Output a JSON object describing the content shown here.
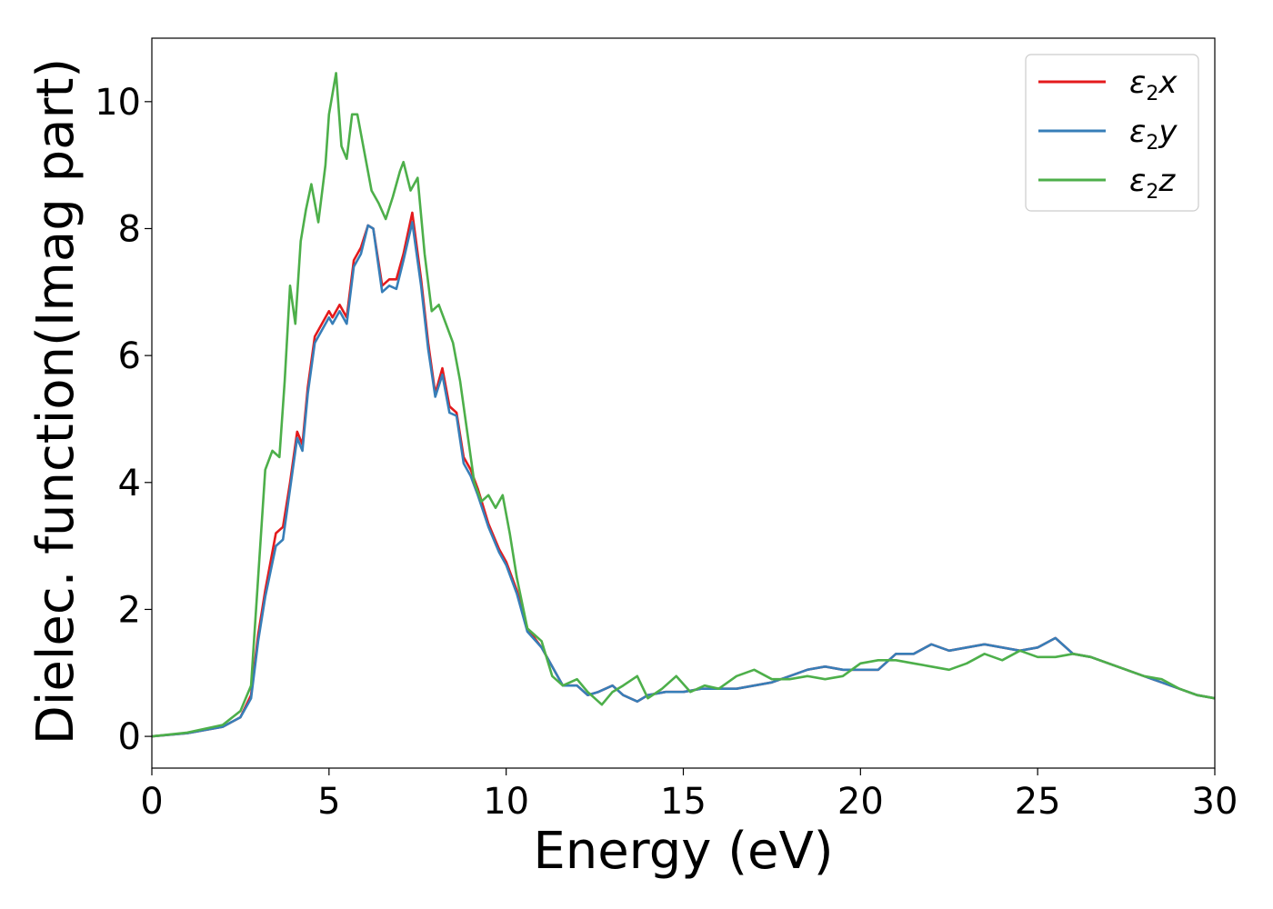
{
  "chart_data": {
    "type": "line",
    "title": "",
    "xlabel": "Energy (eV)",
    "ylabel": "Dielec. function(Imag part)",
    "xlim": [
      0,
      30
    ],
    "ylim": [
      -0.5,
      11
    ],
    "xticks": [
      "0",
      "5",
      "10",
      "15",
      "20",
      "25",
      "30"
    ],
    "yticks": [
      "0",
      "2",
      "4",
      "6",
      "8",
      "10"
    ],
    "grid": false,
    "legend_position": "top-right",
    "series": [
      {
        "name": "ε2x",
        "legend_base": "ε",
        "legend_sub": "2",
        "legend_var": "x",
        "color": "#e41a1c",
        "x": [
          0,
          1,
          2,
          2.5,
          2.8,
          3.0,
          3.2,
          3.5,
          3.7,
          3.9,
          4.1,
          4.25,
          4.4,
          4.6,
          4.8,
          5.0,
          5.1,
          5.3,
          5.5,
          5.7,
          5.9,
          6.1,
          6.25,
          6.5,
          6.7,
          6.9,
          7.1,
          7.35,
          7.6,
          7.8,
          8.0,
          8.2,
          8.4,
          8.6,
          8.8,
          9.0,
          9.2,
          9.5,
          9.8,
          10.0,
          10.3,
          10.6,
          11.0,
          11.3,
          11.6,
          12.0,
          12.3,
          12.6,
          13.0,
          13.3,
          13.7,
          14.0,
          14.5,
          15.0,
          15.5,
          16.0,
          16.5,
          17.0,
          17.5,
          18.0,
          18.5,
          19.0,
          19.5,
          20.0,
          20.5,
          21.0,
          21.5,
          22.0,
          22.5,
          23.0,
          23.5,
          24.0,
          24.5,
          25.0,
          25.5,
          26.0,
          26.5,
          27.0,
          27.5,
          28.0,
          28.5,
          29.0,
          29.5,
          30.0
        ],
        "y": [
          0,
          0.05,
          0.15,
          0.3,
          0.65,
          1.6,
          2.3,
          3.2,
          3.3,
          4.0,
          4.8,
          4.6,
          5.5,
          6.3,
          6.5,
          6.7,
          6.6,
          6.8,
          6.6,
          7.5,
          7.7,
          8.05,
          8.0,
          7.1,
          7.2,
          7.2,
          7.6,
          8.25,
          7.2,
          6.2,
          5.4,
          5.8,
          5.2,
          5.1,
          4.4,
          4.2,
          3.9,
          3.35,
          2.95,
          2.75,
          2.3,
          1.7,
          1.4,
          1.1,
          0.8,
          0.8,
          0.65,
          0.7,
          0.8,
          0.65,
          0.55,
          0.65,
          0.7,
          0.7,
          0.75,
          0.75,
          0.75,
          0.8,
          0.85,
          0.95,
          1.05,
          1.1,
          1.05,
          1.05,
          1.05,
          1.3,
          1.3,
          1.45,
          1.35,
          1.4,
          1.45,
          1.4,
          1.35,
          1.4,
          1.55,
          1.3,
          1.25,
          1.15,
          1.05,
          0.95,
          0.85,
          0.75,
          0.65,
          0.6
        ]
      },
      {
        "name": "ε2y",
        "legend_base": "ε",
        "legend_sub": "2",
        "legend_var": "y",
        "color": "#377eb8",
        "x": [
          0,
          1,
          2,
          2.5,
          2.8,
          3.0,
          3.2,
          3.5,
          3.7,
          3.9,
          4.1,
          4.25,
          4.4,
          4.6,
          4.8,
          5.0,
          5.1,
          5.3,
          5.5,
          5.7,
          5.9,
          6.1,
          6.25,
          6.5,
          6.7,
          6.9,
          7.1,
          7.35,
          7.6,
          7.8,
          8.0,
          8.2,
          8.4,
          8.6,
          8.8,
          9.0,
          9.2,
          9.5,
          9.8,
          10.0,
          10.3,
          10.6,
          11.0,
          11.3,
          11.6,
          12.0,
          12.3,
          12.6,
          13.0,
          13.3,
          13.7,
          14.0,
          14.5,
          15.0,
          15.5,
          16.0,
          16.5,
          17.0,
          17.5,
          18.0,
          18.5,
          19.0,
          19.5,
          20.0,
          20.5,
          21.0,
          21.5,
          22.0,
          22.5,
          23.0,
          23.5,
          24.0,
          24.5,
          25.0,
          25.5,
          26.0,
          26.5,
          27.0,
          27.5,
          28.0,
          28.5,
          29.0,
          29.5,
          30.0
        ],
        "y": [
          0,
          0.05,
          0.15,
          0.3,
          0.6,
          1.5,
          2.2,
          3.0,
          3.1,
          3.9,
          4.7,
          4.5,
          5.4,
          6.2,
          6.4,
          6.6,
          6.5,
          6.7,
          6.5,
          7.4,
          7.6,
          8.05,
          8.0,
          7.0,
          7.1,
          7.05,
          7.5,
          8.1,
          7.1,
          6.1,
          5.35,
          5.7,
          5.1,
          5.05,
          4.3,
          4.1,
          3.8,
          3.3,
          2.9,
          2.7,
          2.25,
          1.65,
          1.4,
          1.1,
          0.8,
          0.8,
          0.65,
          0.7,
          0.8,
          0.65,
          0.55,
          0.65,
          0.7,
          0.7,
          0.75,
          0.75,
          0.75,
          0.8,
          0.85,
          0.95,
          1.05,
          1.1,
          1.05,
          1.05,
          1.05,
          1.3,
          1.3,
          1.45,
          1.35,
          1.4,
          1.45,
          1.4,
          1.35,
          1.4,
          1.55,
          1.3,
          1.25,
          1.15,
          1.05,
          0.95,
          0.85,
          0.75,
          0.65,
          0.6
        ]
      },
      {
        "name": "ε2z",
        "legend_base": "ε",
        "legend_sub": "2",
        "legend_var": "z",
        "color": "#4daf4a",
        "x": [
          0,
          1,
          2,
          2.5,
          2.8,
          3.0,
          3.2,
          3.4,
          3.6,
          3.75,
          3.9,
          4.05,
          4.2,
          4.35,
          4.5,
          4.7,
          4.9,
          5.0,
          5.2,
          5.35,
          5.5,
          5.65,
          5.8,
          6.0,
          6.2,
          6.4,
          6.6,
          6.8,
          7.0,
          7.1,
          7.3,
          7.5,
          7.7,
          7.9,
          8.1,
          8.3,
          8.5,
          8.7,
          8.9,
          9.1,
          9.3,
          9.5,
          9.7,
          9.9,
          10.1,
          10.3,
          10.6,
          11.0,
          11.3,
          11.6,
          12.0,
          12.3,
          12.7,
          13.0,
          13.3,
          13.7,
          14.0,
          14.4,
          14.8,
          15.2,
          15.6,
          16.0,
          16.5,
          17.0,
          17.5,
          18.0,
          18.5,
          19.0,
          19.5,
          20.0,
          20.5,
          21.0,
          21.5,
          22.0,
          22.5,
          23.0,
          23.5,
          24.0,
          24.5,
          25.0,
          25.5,
          26.0,
          26.5,
          27.0,
          27.5,
          28.0,
          28.5,
          29.0,
          29.5,
          30.0
        ],
        "y": [
          0,
          0.06,
          0.18,
          0.4,
          0.8,
          2.5,
          4.2,
          4.5,
          4.4,
          5.6,
          7.1,
          6.5,
          7.8,
          8.3,
          8.7,
          8.1,
          9.0,
          9.8,
          10.45,
          9.3,
          9.1,
          9.8,
          9.8,
          9.2,
          8.6,
          8.4,
          8.15,
          8.5,
          8.9,
          9.05,
          8.6,
          8.8,
          7.6,
          6.7,
          6.8,
          6.5,
          6.2,
          5.6,
          4.8,
          4.0,
          3.7,
          3.8,
          3.6,
          3.8,
          3.2,
          2.5,
          1.7,
          1.5,
          0.95,
          0.8,
          0.9,
          0.7,
          0.5,
          0.7,
          0.8,
          0.95,
          0.6,
          0.75,
          0.95,
          0.7,
          0.8,
          0.75,
          0.95,
          1.05,
          0.9,
          0.9,
          0.95,
          0.9,
          0.95,
          1.15,
          1.2,
          1.2,
          1.15,
          1.1,
          1.05,
          1.15,
          1.3,
          1.2,
          1.35,
          1.25,
          1.25,
          1.3,
          1.25,
          1.15,
          1.05,
          0.95,
          0.9,
          0.75,
          0.65,
          0.6
        ]
      }
    ]
  }
}
